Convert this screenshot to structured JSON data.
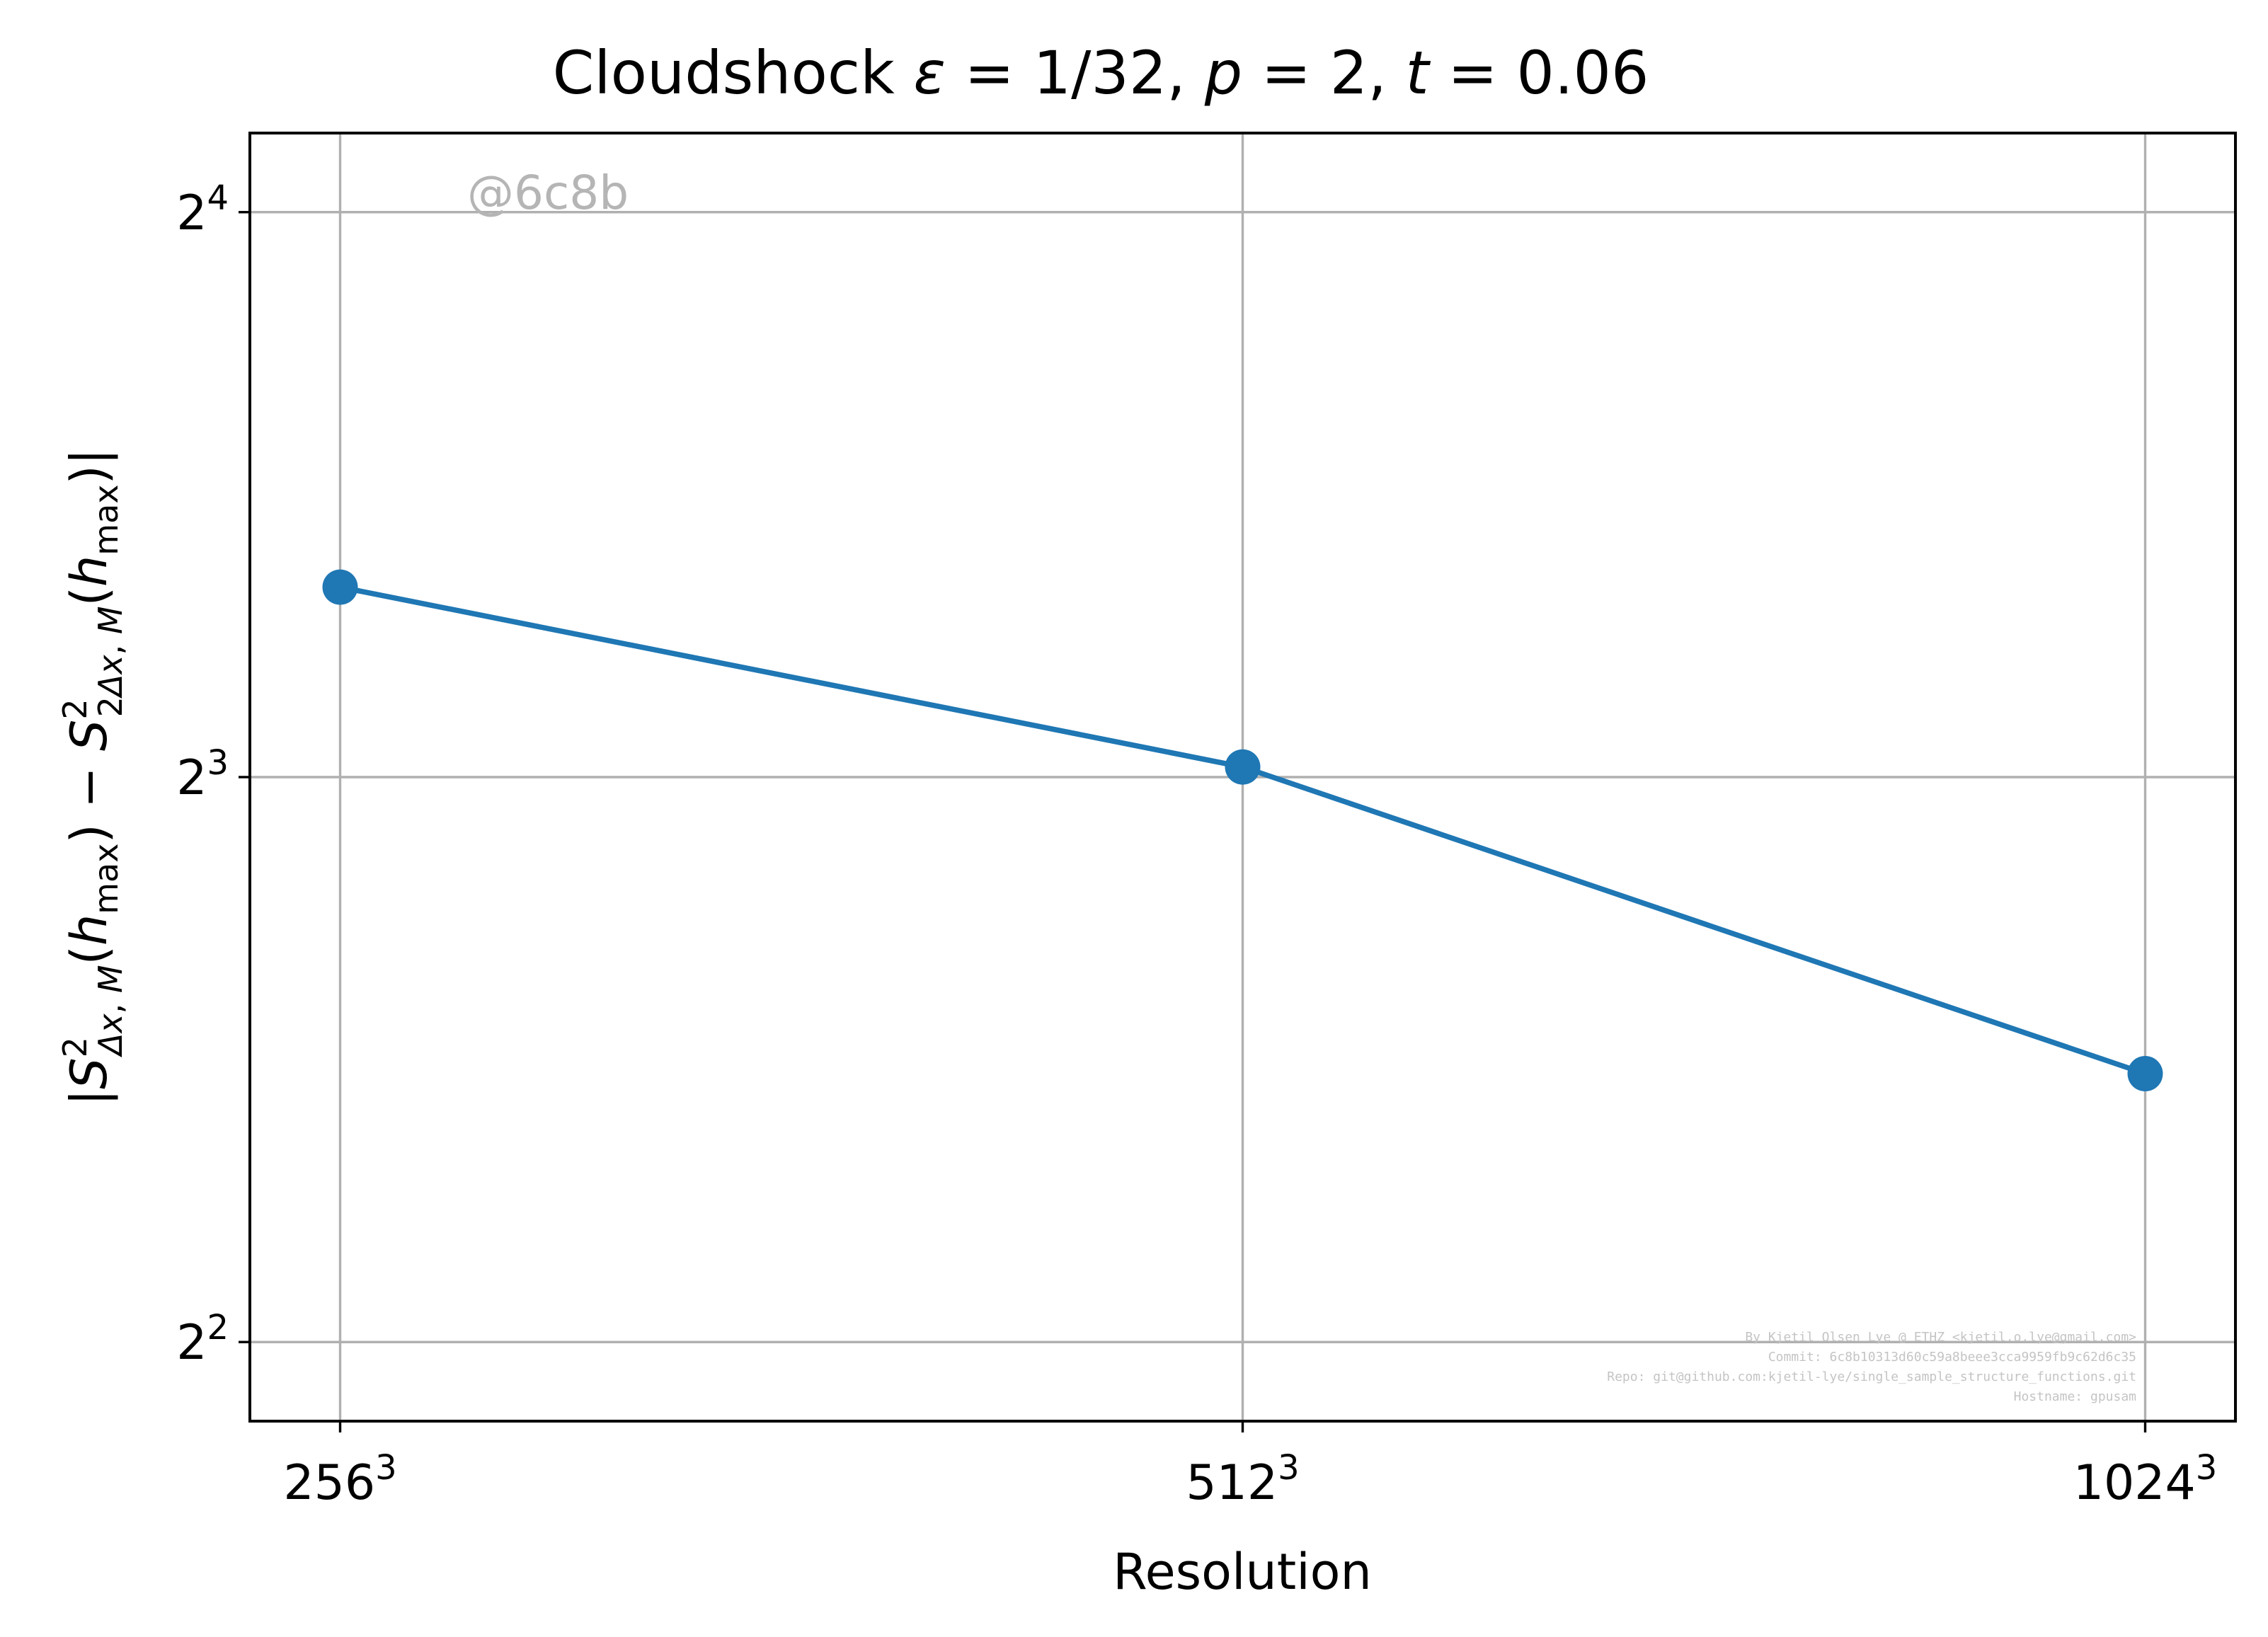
{
  "chart_data": {
    "type": "line",
    "title": "Cloudshock ε = 1/32, p = 2, t = 0.06",
    "xlabel": "Resolution",
    "ylabel": "|S²Δx,M(hmax) − S²2Δx,M(hmax)|",
    "x_scale": "log2",
    "y_scale": "log2",
    "categories": [
      "256³",
      "512³",
      "1024³"
    ],
    "x": [
      256,
      512,
      1024
    ],
    "x_tick_labels": [
      {
        "base": "256",
        "exp": "3"
      },
      {
        "base": "512",
        "exp": "3"
      },
      {
        "base": "1024",
        "exp": "3"
      }
    ],
    "series": [
      {
        "values": [
          10.1,
          8.1,
          5.56
        ],
        "color": "#1f77b4",
        "marker": "circle"
      }
    ],
    "y_ticks": [
      2,
      3,
      4
    ],
    "y_tick_labels": [
      {
        "base": "2",
        "exp": "2"
      },
      {
        "base": "2",
        "exp": "3"
      },
      {
        "base": "2",
        "exp": "4"
      }
    ],
    "xlim_log2": [
      7.9,
      10.1
    ],
    "ylim_log2": [
      1.86,
      4.14
    ],
    "grid": true,
    "legend": "none"
  },
  "annotations": {
    "watermark": "@6c8b",
    "footer_lines": [
      "By Kjetil Olsen Lye @ ETHZ <kjetil.o.lye@gmail.com>",
      "Commit: 6c8b10313d60c59a8beee3cca9959fb9c62d6c35",
      "Repo: git@github.com:kjetil-lye/single_sample_structure_functions.git",
      "Hostname: gpusam"
    ]
  }
}
